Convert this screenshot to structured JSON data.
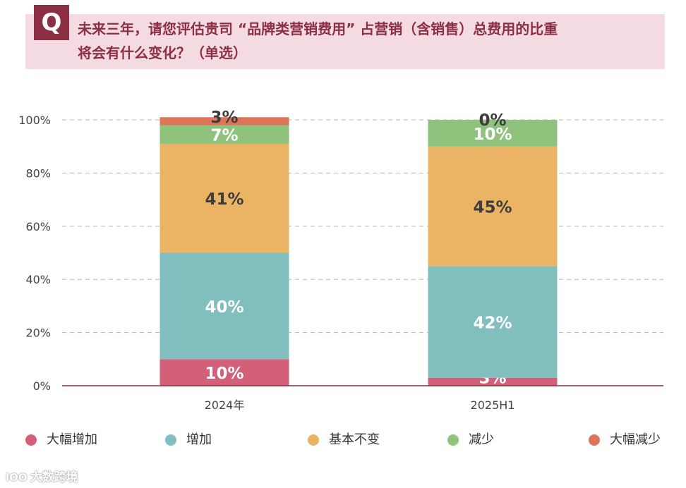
{
  "header": {
    "badge": "Q",
    "question_line1": "未来三年，请您评估贵司 “品牌类营销费用” 占营销（含销售）总费用的比重",
    "question_line2": "将会有什么变化？（单选）"
  },
  "watermark": {
    "icon": "lOO",
    "text": "大数跨境"
  },
  "colors": {
    "大幅增加": "#d35f78",
    "增加": "#81bfbf",
    "基本不变": "#ebb464",
    "减少": "#8fc27c",
    "大幅减少": "#dd7558"
  },
  "chart_data": {
    "type": "bar",
    "stacked": true,
    "categories": [
      "2024年",
      "2025H1"
    ],
    "series": [
      {
        "name": "大幅增加",
        "values": [
          10,
          3
        ],
        "labels": [
          "10%",
          "3%"
        ]
      },
      {
        "name": "增加",
        "values": [
          40,
          42
        ],
        "labels": [
          "40%",
          "42%"
        ]
      },
      {
        "name": "基本不变",
        "values": [
          41,
          45
        ],
        "labels": [
          "41%",
          "45%"
        ]
      },
      {
        "name": "减少",
        "values": [
          7,
          10
        ],
        "labels": [
          "7%",
          "10%"
        ]
      },
      {
        "name": "大幅减少",
        "values": [
          3,
          0
        ],
        "labels": [
          "3%",
          "0%"
        ]
      }
    ],
    "ylim": [
      0,
      100
    ],
    "yticks": [
      "0%",
      "20%",
      "40%",
      "60%",
      "80%",
      "100%"
    ],
    "grid": true,
    "legend_position": "bottom"
  }
}
